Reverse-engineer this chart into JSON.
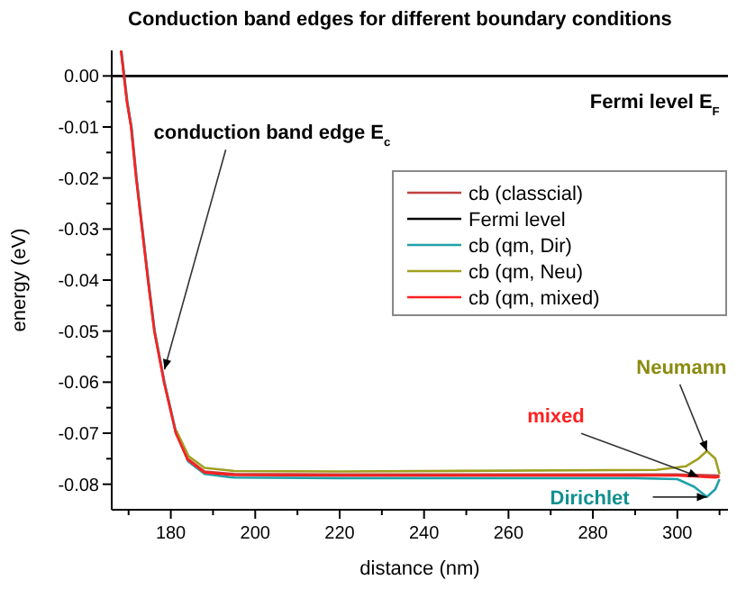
{
  "chart_data": {
    "type": "line",
    "title": "Conduction band edges for different boundary conditions",
    "xlabel": "distance (nm)",
    "ylabel": "energy (eV)",
    "xlim": [
      166,
      312
    ],
    "ylim": [
      -0.085,
      0.005
    ],
    "xticks": [
      {
        "value": 170,
        "label": null
      },
      180,
      {
        "value": 190,
        "label": null
      },
      200,
      {
        "value": 210,
        "label": null
      },
      220,
      {
        "value": 230,
        "label": null
      },
      240,
      {
        "value": 250,
        "label": null
      },
      260,
      {
        "value": 270,
        "label": null
      },
      280,
      {
        "value": 290,
        "label": null
      },
      300,
      {
        "value": 310,
        "label": null
      }
    ],
    "yticks": [
      -0.08,
      {
        "value": -0.075,
        "label": null
      },
      -0.07,
      {
        "value": -0.065,
        "label": null
      },
      -0.06,
      {
        "value": -0.055,
        "label": null
      },
      -0.05,
      {
        "value": -0.045,
        "label": null
      },
      -0.04,
      {
        "value": -0.035,
        "label": null
      },
      -0.03,
      {
        "value": -0.025,
        "label": null
      },
      -0.02,
      {
        "value": -0.015,
        "label": null
      },
      -0.01,
      {
        "value": -0.005,
        "label": null
      },
      {
        "value": 0,
        "label": "0.00"
      }
    ],
    "grid": false,
    "legend": "right",
    "marker": "none",
    "line_style": "solid",
    "series": [
      {
        "name": "cb (classcial)",
        "color": "#c04040",
        "x": [
          168.2,
          168.9,
          169.6,
          170.6,
          171.8,
          173.2,
          174.6,
          176.1,
          178.4,
          181.2,
          184,
          188,
          195,
          220,
          300,
          310
        ],
        "values": [
          0.005,
          0,
          -0.005,
          -0.01,
          -0.02,
          -0.03,
          -0.04,
          -0.05,
          -0.06,
          -0.07,
          -0.075,
          -0.0775,
          -0.078,
          -0.0781,
          -0.0781,
          -0.0783
        ]
      },
      {
        "name": "Fermi level",
        "color": "#000000",
        "x": [
          166,
          312
        ],
        "values": [
          0,
          0
        ]
      },
      {
        "name": "cb (qm, Dir)",
        "color": "#20a0a8",
        "x": [
          168.3,
          169,
          169.7,
          170.7,
          171.9,
          173.3,
          174.7,
          176.2,
          178.5,
          181.3,
          184.1,
          188,
          195,
          220,
          290,
          300,
          304,
          307,
          309,
          310
        ],
        "values": [
          0.005,
          0,
          -0.005,
          -0.01,
          -0.02,
          -0.03,
          -0.04,
          -0.05,
          -0.06,
          -0.07,
          -0.0755,
          -0.078,
          -0.0787,
          -0.0788,
          -0.0788,
          -0.079,
          -0.0805,
          -0.0825,
          -0.081,
          -0.079
        ]
      },
      {
        "name": "cb (qm, Neu)",
        "color": "#a0a020",
        "x": [
          181.3,
          184.2,
          188,
          195,
          220,
          295,
          302,
          305,
          307,
          309,
          310
        ],
        "values": [
          -0.0695,
          -0.0745,
          -0.0768,
          -0.0774,
          -0.0775,
          -0.0772,
          -0.0765,
          -0.075,
          -0.0735,
          -0.075,
          -0.078
        ]
      },
      {
        "name": "cb (qm, mixed)",
        "color": "#ff2020",
        "x": [
          168.2,
          168.9,
          169.6,
          170.6,
          171.8,
          173.2,
          174.6,
          176.1,
          178.4,
          181.2,
          184,
          188,
          195,
          220,
          300,
          305,
          309,
          310
        ],
        "values": [
          0.005,
          0,
          -0.005,
          -0.01,
          -0.02,
          -0.03,
          -0.04,
          -0.05,
          -0.06,
          -0.07,
          -0.0752,
          -0.0777,
          -0.0782,
          -0.0783,
          -0.0783,
          -0.0785,
          -0.0787,
          -0.0785
        ]
      }
    ],
    "annotations": [
      {
        "text": "conduction band edge E$_{c}$",
        "x": 178.5,
        "y": -0.0575
      },
      {
        "text": "Fermi level E$_{F}$",
        "x": 310,
        "y": 0
      },
      {
        "text": "Neumann",
        "x": 307,
        "y": -0.0735
      },
      {
        "text": "mixed",
        "x": 305,
        "y": -0.0785
      },
      {
        "text": "Dirichlet",
        "x": 307,
        "y": -0.0825
      }
    ]
  }
}
